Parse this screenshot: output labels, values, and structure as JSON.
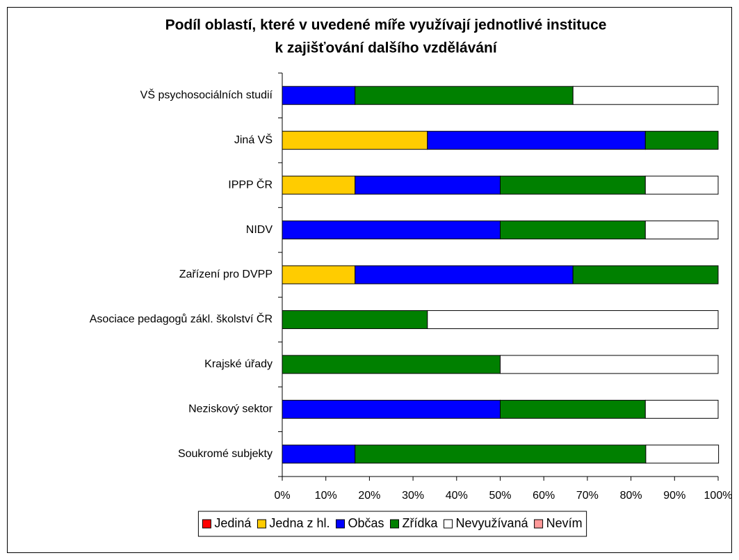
{
  "chart_data": {
    "type": "stacked-bar-horizontal",
    "title": [
      "Podíl oblastí, které v uvedené míře využívají jednotlivé instituce",
      "k zajišťování dalšího vzdělávání"
    ],
    "categories": [
      "VŠ psychosociálních studií",
      "Jiná VŠ",
      "IPPP ČR",
      "NIDV",
      "Zařízení pro DVPP",
      "Asociace pedagogů zákl. školství ČR",
      "Krajské úřady",
      "Neziskový sektor",
      "Soukromé subjekty"
    ],
    "series": [
      {
        "name": "Jediná",
        "color": "#ff0000",
        "values": [
          0,
          0,
          0,
          0,
          0,
          0,
          0,
          0,
          0
        ]
      },
      {
        "name": "Jedna z hl.",
        "color": "#ffcc00",
        "values": [
          0,
          33.3,
          16.7,
          0,
          16.7,
          0,
          0,
          0,
          0
        ]
      },
      {
        "name": "Občas",
        "color": "#0000ff",
        "values": [
          16.7,
          50,
          33.3,
          50,
          50,
          0,
          0,
          50,
          16.7
        ]
      },
      {
        "name": "Zřídka",
        "color": "#008000",
        "values": [
          50,
          16.7,
          33.3,
          33.3,
          33.3,
          33.3,
          50,
          33.3,
          66.7
        ]
      },
      {
        "name": "Nevyužívaná",
        "color": "#ffffff",
        "values": [
          33.3,
          0,
          16.7,
          16.7,
          0,
          66.7,
          50,
          16.7,
          16.7
        ]
      },
      {
        "name": "Nevím",
        "color": "#ff9999",
        "values": [
          0,
          0,
          0,
          0,
          0,
          0,
          0,
          0,
          0
        ]
      }
    ],
    "xlim": [
      0,
      100
    ],
    "xticks": [
      {
        "value": 0,
        "label": "0%"
      },
      {
        "value": 10,
        "label": "10%"
      },
      {
        "value": 20,
        "label": "20%"
      },
      {
        "value": 30,
        "label": "30%"
      },
      {
        "value": 40,
        "label": "40%"
      },
      {
        "value": 50,
        "label": "50%"
      },
      {
        "value": 60,
        "label": "60%"
      },
      {
        "value": 70,
        "label": "70%"
      },
      {
        "value": 80,
        "label": "80%"
      },
      {
        "value": 90,
        "label": "90%"
      },
      {
        "value": 100,
        "label": "100%"
      }
    ],
    "legend": "bottom"
  }
}
